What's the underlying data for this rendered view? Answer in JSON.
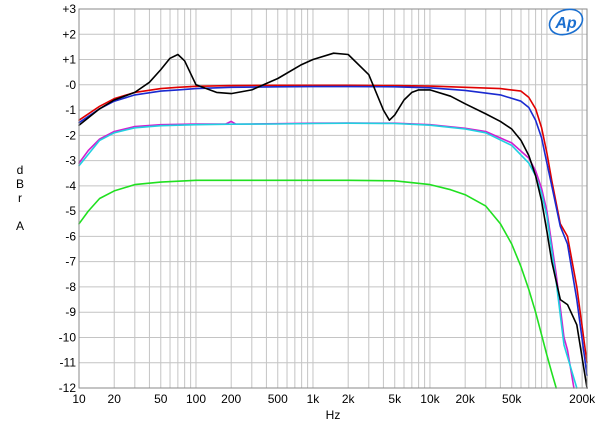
{
  "chart_data": {
    "type": "line",
    "xlabel": "Hz",
    "ylabel": [
      "d",
      "B",
      "r",
      "",
      "A"
    ],
    "xscale": "log",
    "xlim": [
      10,
      220000
    ],
    "ylim": [
      -12,
      3
    ],
    "grid": true,
    "logo": "Ap",
    "y_ticks": [
      3,
      2,
      1,
      0,
      -1,
      -2,
      -3,
      -4,
      -5,
      -6,
      -7,
      -8,
      -9,
      -10,
      -11,
      -12
    ],
    "y_tick_labels": [
      "+3",
      "+2",
      "+1",
      "-0",
      "-1",
      "-2",
      "-3",
      "-4",
      "-5",
      "-6",
      "-7",
      "-8",
      "-9",
      "-10",
      "-11",
      "-12"
    ],
    "x_ticks": [
      10,
      20,
      50,
      100,
      200,
      500,
      1000,
      2000,
      5000,
      10000,
      20000,
      50000,
      200000
    ],
    "x_tick_labels": [
      "10",
      "20",
      "50",
      "100",
      "200",
      "500",
      "1k",
      "2k",
      "5k",
      "10k",
      "20k",
      "50k",
      "200k"
    ],
    "series": [
      {
        "color": "#e00000",
        "x": [
          10,
          15,
          20,
          30,
          50,
          70,
          100,
          200,
          500,
          1000,
          2000,
          5000,
          10000,
          20000,
          40000,
          60000,
          70000,
          80000,
          90000,
          100000,
          110000,
          130000,
          150000,
          180000,
          220000
        ],
        "y": [
          -1.4,
          -0.85,
          -0.55,
          -0.3,
          -0.15,
          -0.1,
          -0.06,
          -0.03,
          -0.02,
          -0.02,
          -0.02,
          -0.03,
          -0.05,
          -0.1,
          -0.15,
          -0.25,
          -0.5,
          -0.95,
          -1.7,
          -2.7,
          -3.8,
          -5.5,
          -6.0,
          -8.0,
          -11.0
        ]
      },
      {
        "color": "#1a2ad0",
        "x": [
          10,
          15,
          20,
          30,
          50,
          70,
          100,
          200,
          500,
          1000,
          2000,
          5000,
          10000,
          20000,
          40000,
          60000,
          70000,
          80000,
          90000,
          100000,
          110000,
          130000,
          150000,
          180000,
          220000
        ],
        "y": [
          -1.5,
          -0.95,
          -0.65,
          -0.4,
          -0.25,
          -0.2,
          -0.15,
          -0.1,
          -0.08,
          -0.07,
          -0.07,
          -0.08,
          -0.12,
          -0.22,
          -0.4,
          -0.65,
          -0.9,
          -1.4,
          -2.1,
          -3.1,
          -4.0,
          -5.6,
          -6.3,
          -8.5,
          -11.5
        ]
      },
      {
        "color": "#d020d0",
        "x": [
          10,
          12,
          15,
          20,
          30,
          50,
          100,
          180,
          200,
          220,
          300,
          500,
          1000,
          2000,
          5000,
          10000,
          20000,
          30000,
          50000,
          70000,
          80000,
          90000,
          100000,
          120000,
          140000,
          150000,
          170000
        ],
        "y": [
          -3.1,
          -2.6,
          -2.15,
          -1.85,
          -1.65,
          -1.58,
          -1.55,
          -1.55,
          -1.45,
          -1.56,
          -1.55,
          -1.54,
          -1.52,
          -1.51,
          -1.52,
          -1.58,
          -1.72,
          -1.85,
          -2.3,
          -2.9,
          -3.4,
          -4.1,
          -5.0,
          -7.5,
          -10.0,
          -10.5,
          -12.0
        ]
      },
      {
        "color": "#20d0e0",
        "x": [
          10,
          15,
          20,
          30,
          50,
          100,
          200,
          500,
          1000,
          2000,
          5000,
          10000,
          20000,
          30000,
          50000,
          70000,
          80000,
          90000,
          100000,
          120000,
          140000,
          160000,
          180000
        ],
        "y": [
          -3.2,
          -2.2,
          -1.9,
          -1.7,
          -1.62,
          -1.58,
          -1.56,
          -1.55,
          -1.53,
          -1.52,
          -1.53,
          -1.6,
          -1.75,
          -1.9,
          -2.4,
          -3.1,
          -3.6,
          -4.3,
          -5.2,
          -7.8,
          -10.3,
          -11.2,
          -12.0
        ]
      },
      {
        "color": "#20e020",
        "x": [
          10,
          12,
          15,
          20,
          30,
          50,
          100,
          200,
          500,
          1000,
          2000,
          5000,
          10000,
          15000,
          20000,
          30000,
          40000,
          50000,
          60000,
          70000,
          80000,
          90000,
          100000,
          110000,
          120000
        ],
        "y": [
          -5.5,
          -5.0,
          -4.5,
          -4.2,
          -3.95,
          -3.85,
          -3.78,
          -3.78,
          -3.78,
          -3.78,
          -3.78,
          -3.8,
          -3.95,
          -4.15,
          -4.35,
          -4.8,
          -5.5,
          -6.3,
          -7.2,
          -8.1,
          -9.0,
          -9.9,
          -10.7,
          -11.4,
          -12.0
        ]
      },
      {
        "color": "#000000",
        "x": [
          10,
          15,
          20,
          30,
          40,
          50,
          60,
          70,
          80,
          100,
          150,
          200,
          300,
          500,
          800,
          1000,
          1500,
          2000,
          3000,
          4000,
          4500,
          5000,
          6000,
          7000,
          8000,
          10000,
          15000,
          20000,
          30000,
          40000,
          50000,
          60000,
          70000,
          80000,
          90000,
          100000,
          110000,
          130000,
          150000,
          180000,
          220000
        ],
        "y": [
          -1.6,
          -0.95,
          -0.6,
          -0.3,
          0.1,
          0.6,
          1.05,
          1.2,
          0.95,
          0.0,
          -0.3,
          -0.35,
          -0.2,
          0.25,
          0.8,
          1.0,
          1.25,
          1.2,
          0.4,
          -1.0,
          -1.4,
          -1.2,
          -0.6,
          -0.3,
          -0.2,
          -0.2,
          -0.45,
          -0.75,
          -1.15,
          -1.45,
          -1.75,
          -2.2,
          -2.8,
          -3.6,
          -4.6,
          -5.8,
          -7.0,
          -8.5,
          -8.7,
          -9.5,
          -12.0
        ]
      }
    ]
  }
}
